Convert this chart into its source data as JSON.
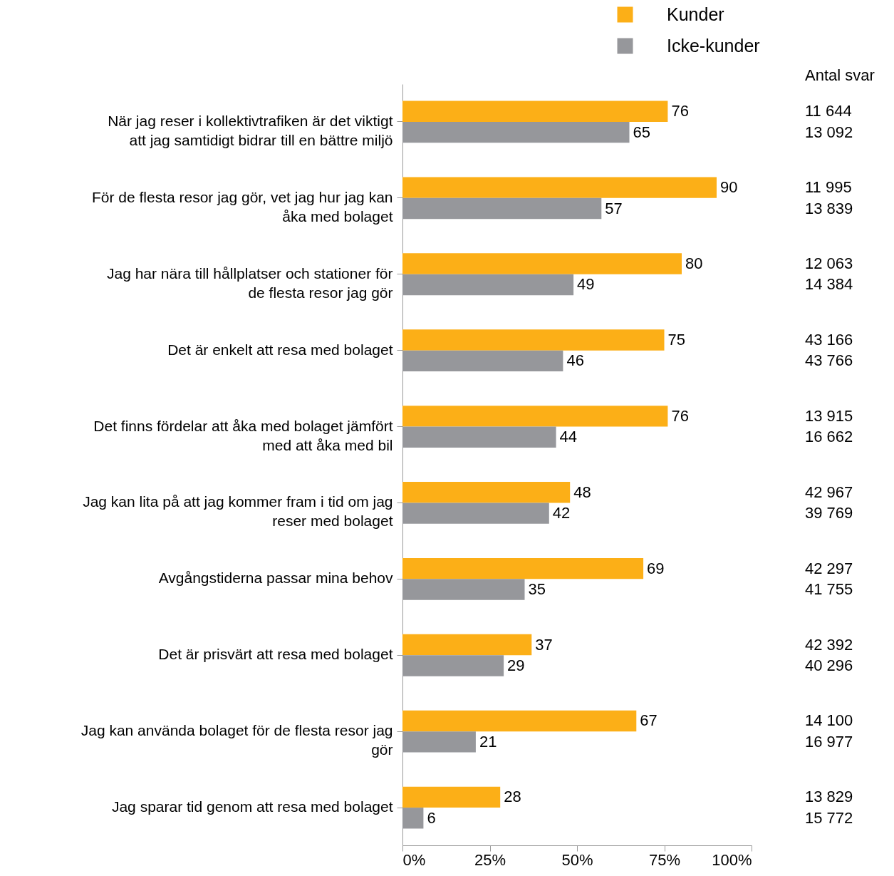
{
  "chart_data": {
    "type": "bar",
    "orientation": "horizontal",
    "categories": [
      "När jag reser i kollektivtrafiken är det viktigt att jag samtidigt bidrar till en bättre miljö",
      "För de flesta resor jag gör, vet jag hur jag kan åka med bolaget",
      "Jag har nära till hållplatser och stationer för de flesta resor jag gör",
      "Det är enkelt att resa med bolaget",
      "Det finns fördelar att åka med bolaget jämfört med att åka med bil",
      "Jag kan lita på att jag kommer fram i tid om jag reser med bolaget",
      "Avgångstiderna passar mina behov",
      "Det är prisvärt att resa med bolaget",
      "Jag kan använda bolaget för de flesta resor jag gör",
      "Jag sparar tid genom att resa med bolaget"
    ],
    "series": [
      {
        "name": "Kunder",
        "color": "#fcaf17",
        "values": [
          76,
          90,
          80,
          75,
          76,
          48,
          69,
          37,
          67,
          28
        ]
      },
      {
        "name": "Icke-kunder",
        "color": "#96979b",
        "values": [
          65,
          57,
          49,
          46,
          44,
          42,
          35,
          29,
          21,
          6
        ]
      }
    ],
    "xlim": [
      0,
      100
    ],
    "xticks": [
      {
        "value": 0,
        "label": "0%"
      },
      {
        "value": 25,
        "label": "25%"
      },
      {
        "value": 50,
        "label": "50%"
      },
      {
        "value": 75,
        "label": "75%"
      },
      {
        "value": 100,
        "label": "100%"
      }
    ],
    "data_labels": true,
    "legend": "top right",
    "grid": false,
    "annotations": [
      "Antal svar",
      "11 644",
      "13 092",
      "11 995",
      "13 839",
      "12 063",
      "14 384",
      "43 166",
      "43 766",
      "13 915",
      "16 662",
      "42 967",
      "39 769",
      "42 297",
      "41 755",
      "42 392",
      "40 296",
      "14 100",
      "16 977",
      "13 829",
      "15 772"
    ]
  }
}
